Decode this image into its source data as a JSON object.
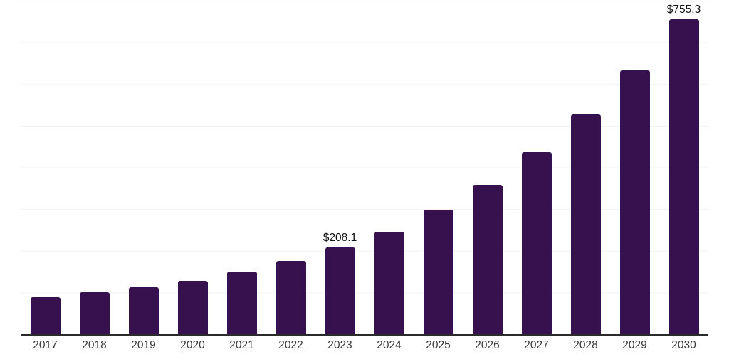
{
  "chart_data": {
    "type": "bar",
    "title": "",
    "xlabel": "",
    "ylabel": "",
    "categories": [
      "2017",
      "2018",
      "2019",
      "2020",
      "2021",
      "2022",
      "2023",
      "2024",
      "2025",
      "2026",
      "2027",
      "2028",
      "2029",
      "2030"
    ],
    "values": [
      89,
      101,
      113,
      128,
      151,
      175,
      208.1,
      246,
      299,
      358,
      437,
      527,
      633,
      755.3
    ],
    "value_labels": [
      "",
      "",
      "",
      "",
      "",
      "",
      "$208.1",
      "",
      "",
      "",
      "",
      "",
      "",
      "$755.3"
    ],
    "labeled_points": [
      {
        "category": "2023",
        "label": "$208.1"
      },
      {
        "category": "2030",
        "label": "$755.3"
      }
    ],
    "ylim": [
      0,
      800
    ],
    "gridline_interval": 100,
    "grid": "horizontal",
    "legend": "none",
    "colors": {
      "bar": "#36114E",
      "axis_line": "#2b2b2b",
      "gridline": "#f3f3f3",
      "tick_label": "#3a3a3a",
      "value_label": "#111111",
      "background": "#ffffff"
    }
  }
}
